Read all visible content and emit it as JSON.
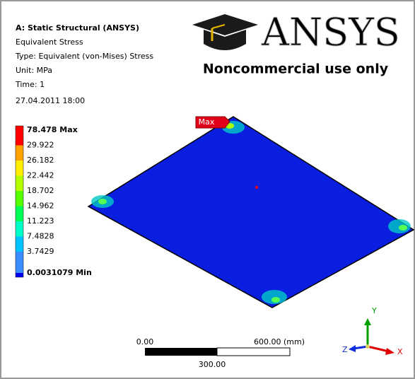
{
  "header": {
    "title": "A: Static Structural (ANSYS)",
    "lines": [
      "Equivalent Stress",
      "Type: Equivalent (von-Mises) Stress",
      "Unit: MPa",
      "Time: 1",
      "27.04.2011 18:00"
    ]
  },
  "logo": {
    "brand": "ANSYS",
    "notice": "Noncommercial use only"
  },
  "legend": {
    "labels": [
      "78.478 Max",
      "29.922",
      "26.182",
      "22.442",
      "18.702",
      "14.962",
      "11.223",
      "7.4828",
      "3.7429",
      "0.0031079 Min"
    ],
    "colors": [
      "#ff0000",
      "#ffa200",
      "#ffee00",
      "#b5ff00",
      "#55ff00",
      "#00ff55",
      "#00ffc8",
      "#00c4ff",
      "#3a8cff",
      "#0000f0"
    ]
  },
  "model": {
    "max_flag": "Max"
  },
  "scale_bar": {
    "start": "0.00",
    "end": "600.00 (mm)",
    "middle": "300.00"
  },
  "triad": {
    "y": "Y",
    "x": "X",
    "z": "Z"
  }
}
